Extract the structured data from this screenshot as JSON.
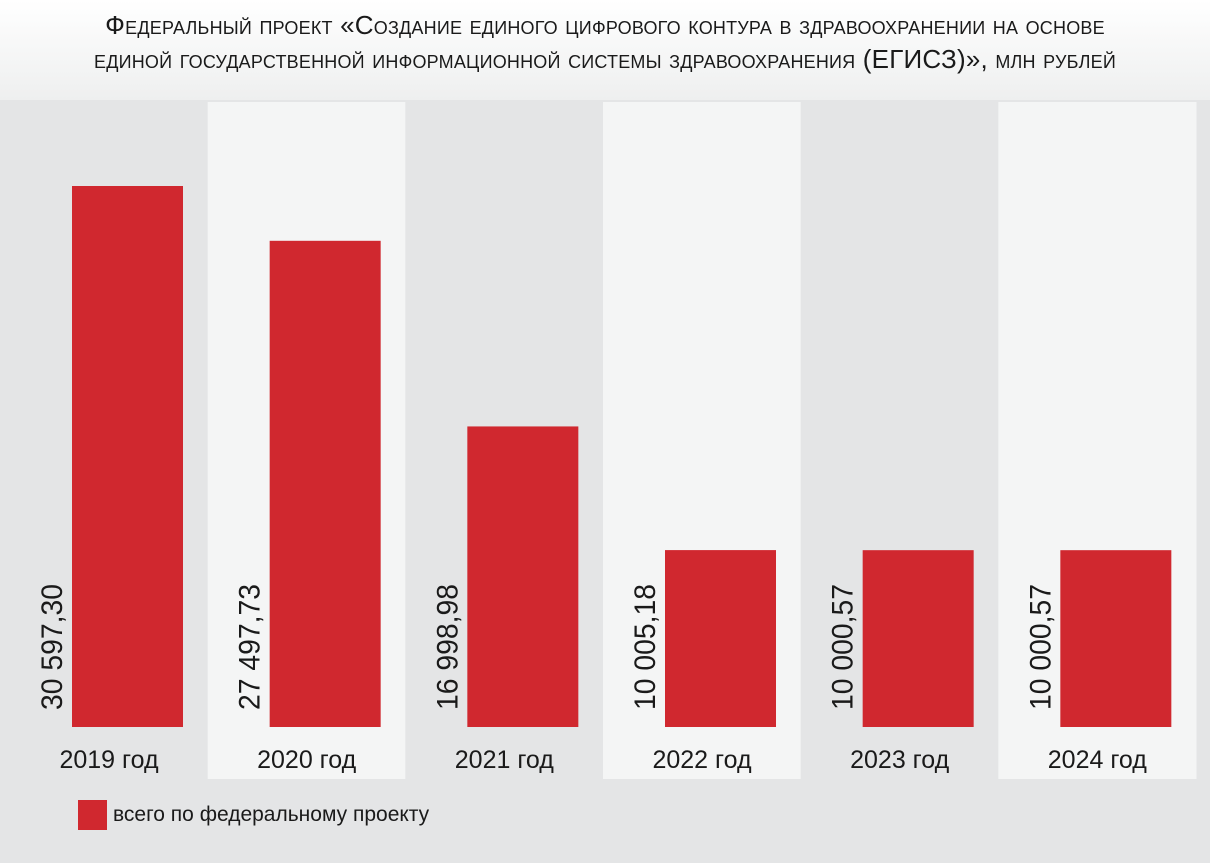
{
  "title_line1": "Федеральный проект «Создание единого цифрового контура в здравоохранении на основе",
  "title_line2": "единой государственной информационной системы здравоохранения (ЕГИСЗ)», млн рублей",
  "colors": {
    "bar": "#d0282f",
    "band_dark": "#e4e5e6",
    "band_light": "#f4f5f5",
    "text": "#1a1a1a"
  },
  "chart_data": {
    "type": "bar",
    "title": "Федеральный проект «Создание единого цифрового контура в здравоохранении на основе единой государственной информационной системы здравоохранения (ЕГИСЗ)», млн рублей",
    "categories": [
      "2019 год",
      "2020 год",
      "2021 год",
      "2022 год",
      "2023 год",
      "2024 год"
    ],
    "series": [
      {
        "name": "всего по федеральному проекту",
        "values": [
          30597.3,
          27497.73,
          16998.98,
          10005.18,
          10000.57,
          10000.57
        ],
        "labels": [
          "30 597,30",
          "27 497,73",
          "16 998,98",
          "10 005,18",
          "10 000,57",
          "10 000,57"
        ]
      }
    ],
    "ylim": [
      0,
      35000
    ],
    "grid": false,
    "legend_position": "bottom-left"
  }
}
